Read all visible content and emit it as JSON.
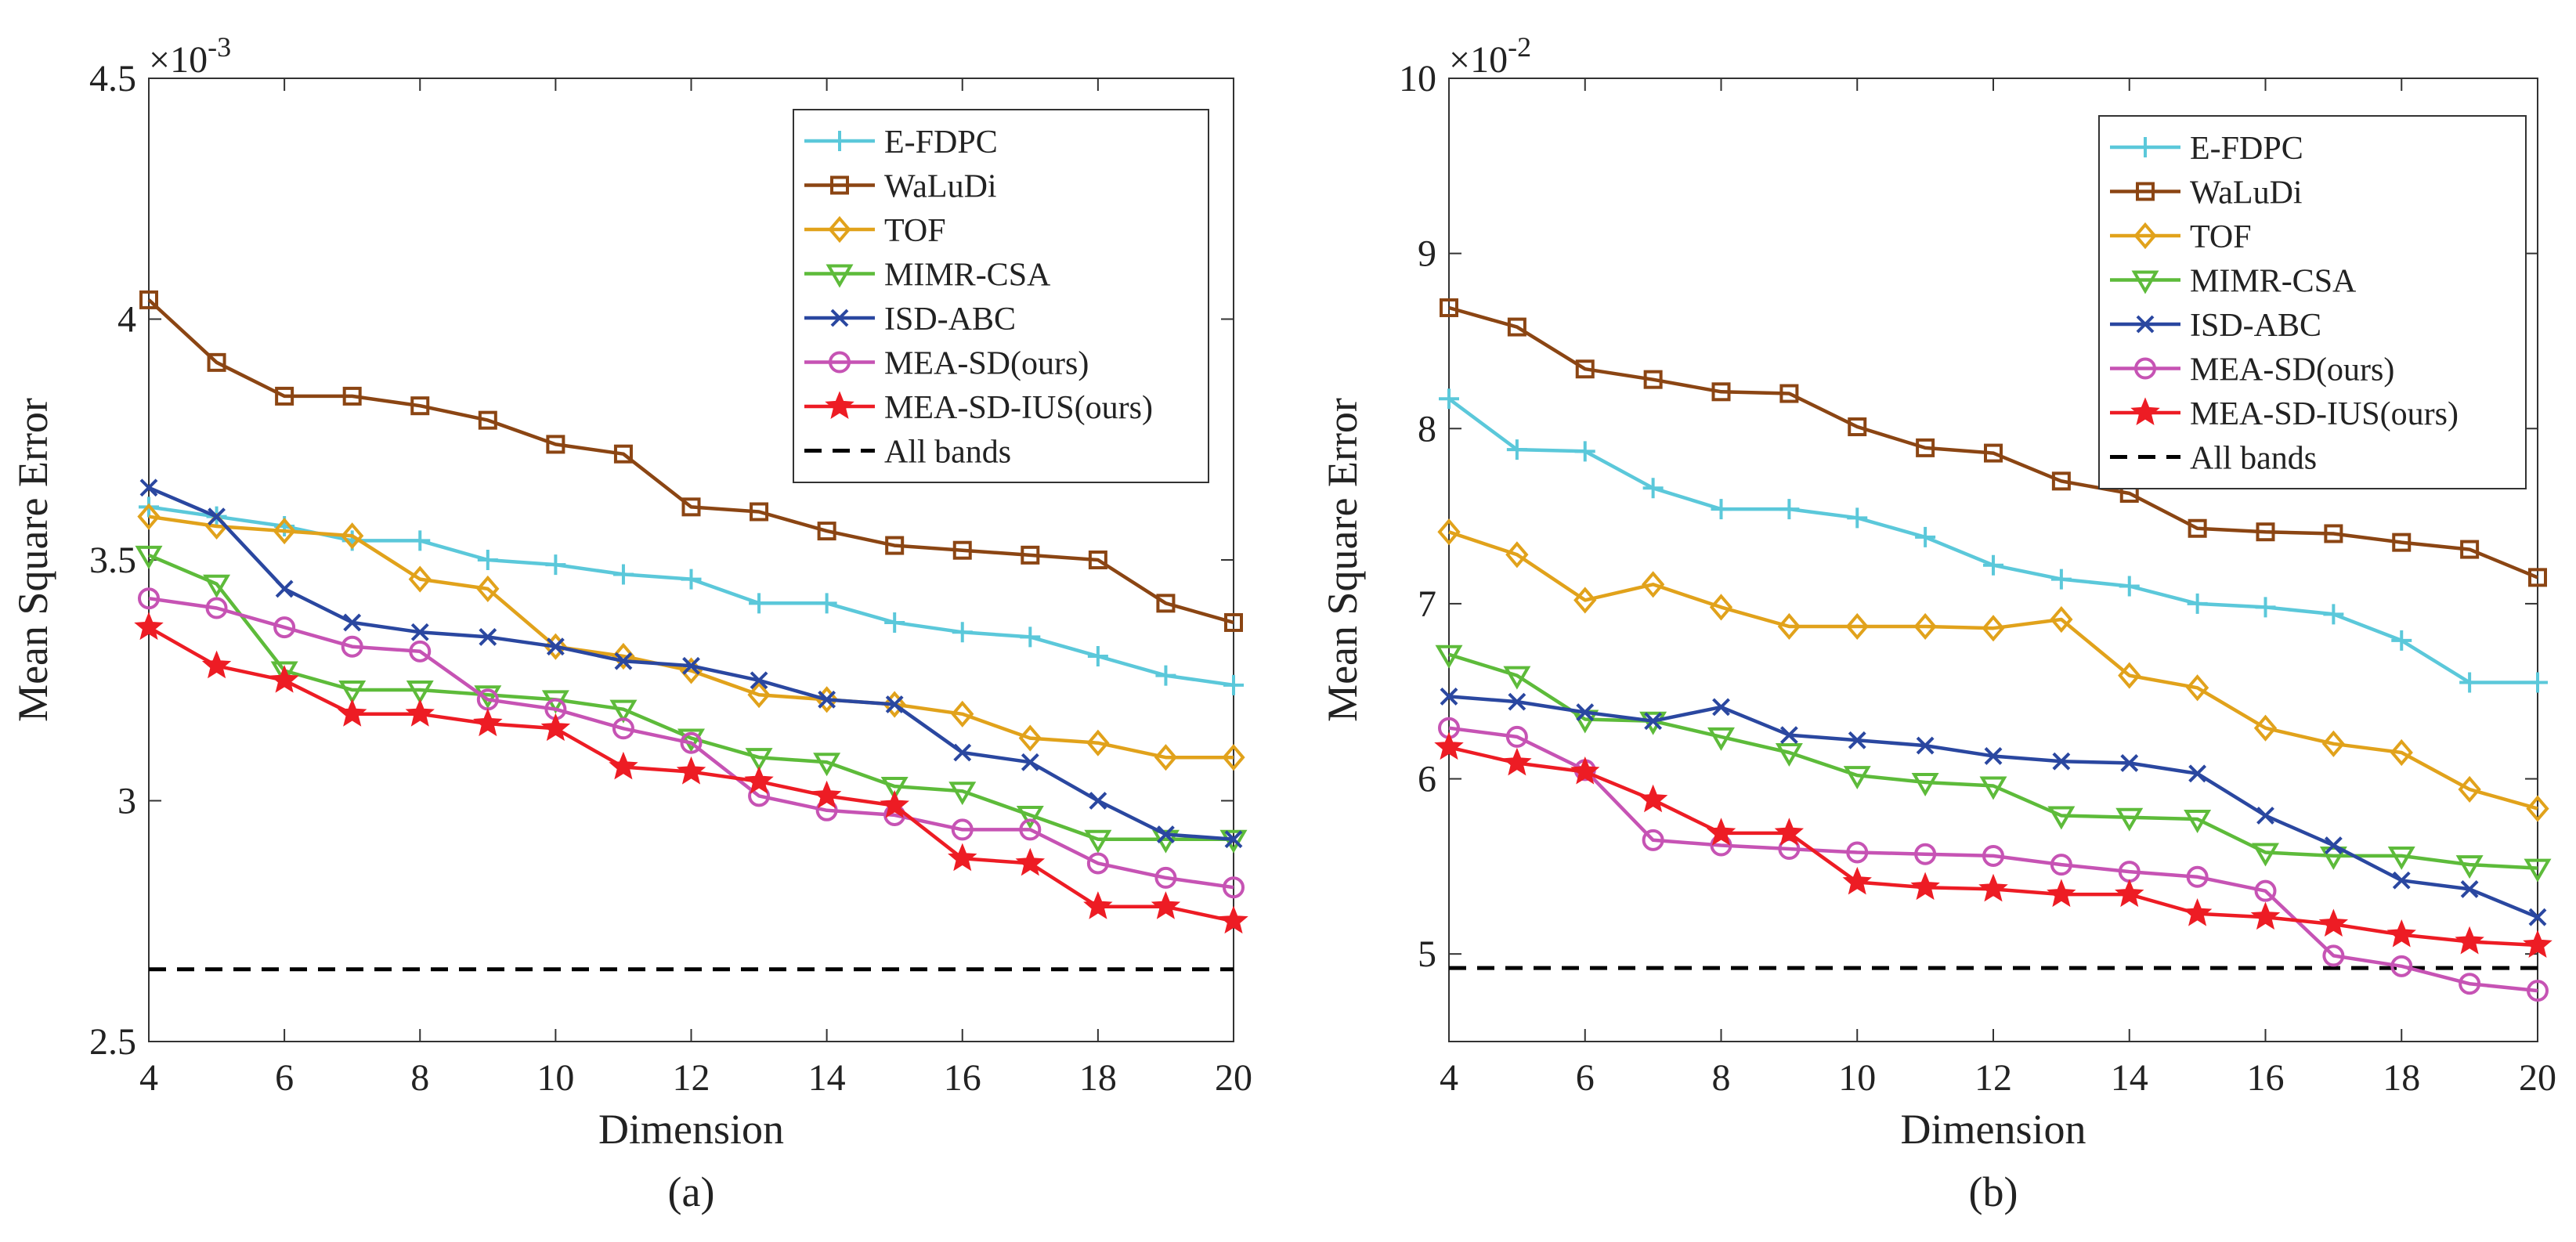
{
  "chart_data": [
    {
      "type": "line",
      "panel_label": "(a)",
      "xlabel": "Dimension",
      "ylabel": "Mean Square Error",
      "y_multiplier": "×10",
      "y_exponent": "-3",
      "xlim": [
        4,
        20
      ],
      "ylim": [
        2.5,
        4.5
      ],
      "xticks": [
        "4",
        "6",
        "8",
        "10",
        "12",
        "14",
        "16",
        "18",
        "20"
      ],
      "yticks": [
        "2.5",
        "3",
        "3.5",
        "4",
        "4.5"
      ],
      "x": [
        4,
        5,
        6,
        7,
        8,
        9,
        10,
        11,
        12,
        13,
        14,
        15,
        16,
        17,
        18,
        19,
        20
      ],
      "legend_position": "top-right",
      "series": [
        {
          "name": "E-FDPC",
          "color": "#5BC8DA",
          "marker": "plus",
          "values": [
            3.61,
            3.59,
            3.57,
            3.54,
            3.54,
            3.5,
            3.49,
            3.47,
            3.46,
            3.41,
            3.41,
            3.37,
            3.35,
            3.34,
            3.3,
            3.26,
            3.24
          ]
        },
        {
          "name": "WaLuDi",
          "color": "#8B4513",
          "marker": "square",
          "values": [
            4.04,
            3.91,
            3.84,
            3.84,
            3.82,
            3.79,
            3.74,
            3.72,
            3.61,
            3.6,
            3.56,
            3.53,
            3.52,
            3.51,
            3.5,
            3.41,
            3.37
          ]
        },
        {
          "name": "TOF",
          "color": "#E1A21B",
          "marker": "diamond",
          "values": [
            3.59,
            3.57,
            3.56,
            3.55,
            3.46,
            3.44,
            3.32,
            3.3,
            3.27,
            3.22,
            3.21,
            3.2,
            3.18,
            3.13,
            3.12,
            3.09,
            3.09
          ]
        },
        {
          "name": "MIMR-CSA",
          "color": "#5DBB3A",
          "marker": "triangle-down",
          "values": [
            3.51,
            3.45,
            3.27,
            3.23,
            3.23,
            3.22,
            3.21,
            3.19,
            3.13,
            3.09,
            3.08,
            3.03,
            3.02,
            2.97,
            2.92,
            2.92,
            2.92
          ]
        },
        {
          "name": "ISD-ABC",
          "color": "#2A47A0",
          "marker": "x",
          "values": [
            3.65,
            3.59,
            3.44,
            3.37,
            3.35,
            3.34,
            3.32,
            3.29,
            3.28,
            3.25,
            3.21,
            3.2,
            3.1,
            3.08,
            3.0,
            2.93,
            2.92
          ]
        },
        {
          "name": "MEA-SD(ours)",
          "color": "#C653B4",
          "marker": "circle",
          "values": [
            3.42,
            3.4,
            3.36,
            3.32,
            3.31,
            3.21,
            3.19,
            3.15,
            3.12,
            3.01,
            2.98,
            2.97,
            2.94,
            2.94,
            2.87,
            2.84,
            2.82
          ]
        },
        {
          "name": "MEA-SD-IUS(ours)",
          "color": "#ED1C24",
          "marker": "star",
          "values": [
            3.36,
            3.28,
            3.25,
            3.18,
            3.18,
            3.16,
            3.15,
            3.07,
            3.06,
            3.04,
            3.01,
            2.99,
            2.88,
            2.87,
            2.78,
            2.78,
            2.75
          ]
        }
      ],
      "baseline": {
        "name": "All bands",
        "color": "#000000",
        "value": 2.65
      }
    },
    {
      "type": "line",
      "panel_label": "(b)",
      "xlabel": "Dimension",
      "ylabel": "Mean Square Error",
      "y_multiplier": "×10",
      "y_exponent": "-2",
      "xlim": [
        4,
        20
      ],
      "ylim": [
        4.5,
        10
      ],
      "xticks": [
        "4",
        "6",
        "8",
        "10",
        "12",
        "14",
        "16",
        "18",
        "20"
      ],
      "yticks": [
        "5",
        "6",
        "7",
        "8",
        "9",
        "10"
      ],
      "x": [
        4,
        5,
        6,
        7,
        8,
        9,
        10,
        11,
        12,
        13,
        14,
        15,
        16,
        17,
        18,
        19,
        20
      ],
      "legend_position": "top-right",
      "series": [
        {
          "name": "E-FDPC",
          "color": "#5BC8DA",
          "marker": "plus",
          "values": [
            8.17,
            7.88,
            7.87,
            7.66,
            7.54,
            7.54,
            7.49,
            7.38,
            7.22,
            7.14,
            7.1,
            7.0,
            6.98,
            6.94,
            6.79,
            6.55,
            6.55
          ]
        },
        {
          "name": "WaLuDi",
          "color": "#8B4513",
          "marker": "square",
          "values": [
            8.69,
            8.58,
            8.34,
            8.28,
            8.21,
            8.2,
            8.01,
            7.89,
            7.86,
            7.7,
            7.63,
            7.43,
            7.41,
            7.4,
            7.35,
            7.31,
            7.15
          ]
        },
        {
          "name": "TOF",
          "color": "#E1A21B",
          "marker": "diamond",
          "values": [
            7.41,
            7.28,
            7.02,
            7.11,
            6.98,
            6.87,
            6.87,
            6.87,
            6.86,
            6.91,
            6.59,
            6.52,
            6.29,
            6.2,
            6.15,
            5.94,
            5.83
          ]
        },
        {
          "name": "MIMR-CSA",
          "color": "#5DBB3A",
          "marker": "triangle-down",
          "values": [
            6.71,
            6.59,
            6.34,
            6.33,
            6.24,
            6.15,
            6.02,
            5.98,
            5.96,
            5.79,
            5.78,
            5.77,
            5.58,
            5.56,
            5.56,
            5.51,
            5.49
          ]
        },
        {
          "name": "ISD-ABC",
          "color": "#2A47A0",
          "marker": "x",
          "values": [
            6.47,
            6.44,
            6.38,
            6.33,
            6.41,
            6.25,
            6.22,
            6.19,
            6.13,
            6.1,
            6.09,
            6.03,
            5.79,
            5.62,
            5.42,
            5.37,
            5.21
          ]
        },
        {
          "name": "MEA-SD(ours)",
          "color": "#C653B4",
          "marker": "circle",
          "values": [
            6.29,
            6.24,
            6.05,
            5.65,
            5.62,
            5.6,
            5.58,
            5.57,
            5.56,
            5.51,
            5.47,
            5.44,
            5.36,
            4.99,
            4.93,
            4.83,
            4.79
          ]
        },
        {
          "name": "MEA-SD-IUS(ours)",
          "color": "#ED1C24",
          "marker": "star",
          "values": [
            6.18,
            6.09,
            6.04,
            5.88,
            5.69,
            5.69,
            5.41,
            5.38,
            5.37,
            5.34,
            5.34,
            5.23,
            5.21,
            5.17,
            5.11,
            5.07,
            5.05
          ]
        }
      ],
      "baseline": {
        "name": "All bands",
        "color": "#000000",
        "value": 4.92
      }
    }
  ]
}
